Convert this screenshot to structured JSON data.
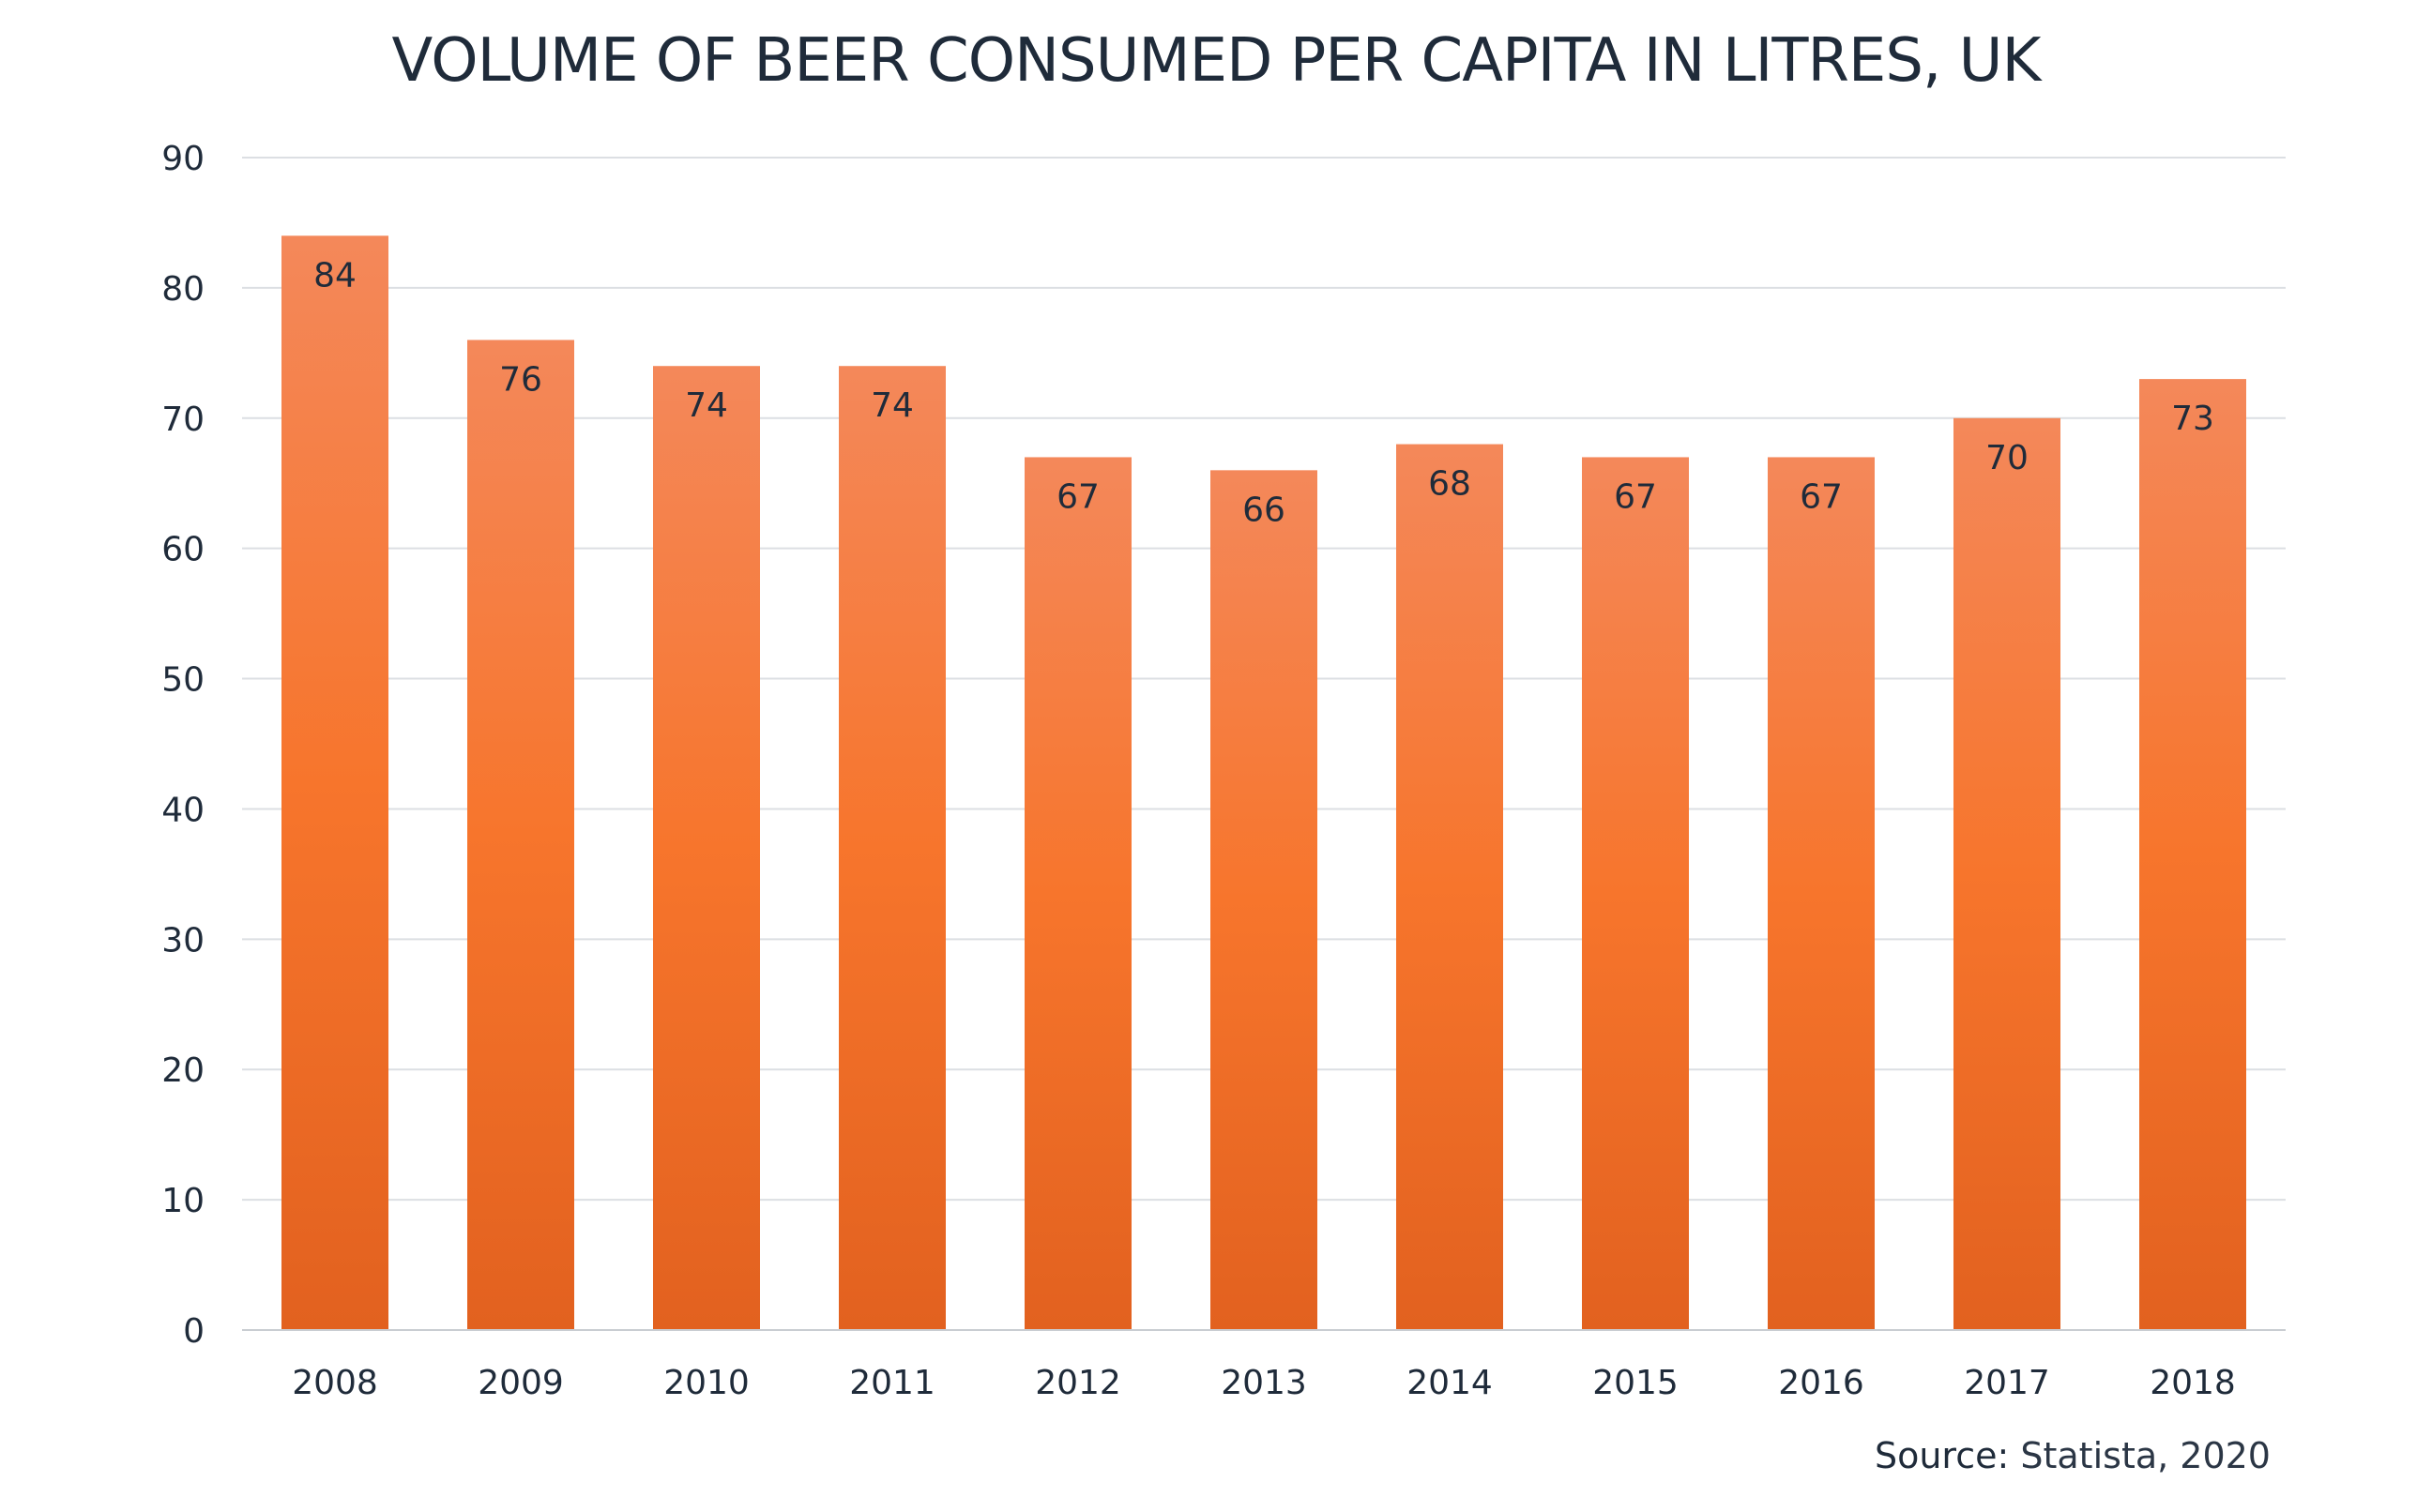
{
  "chart_data": {
    "type": "bar",
    "title": "VOLUME OF BEER CONSUMED PER CAPITA IN LITRES, UK",
    "categories": [
      "2008",
      "2009",
      "2010",
      "2011",
      "2012",
      "2013",
      "2014",
      "2015",
      "2016",
      "2017",
      "2018"
    ],
    "values": [
      84,
      76,
      74,
      74,
      67,
      66,
      68,
      67,
      67,
      70,
      73
    ],
    "data_labels": [
      "84",
      "76",
      "74",
      "74",
      "67",
      "66",
      "68",
      "67",
      "67",
      "70",
      "73"
    ],
    "xlabel": "",
    "ylabel": "",
    "ylim": [
      0,
      90
    ],
    "yticks": [
      0,
      10,
      20,
      30,
      40,
      50,
      60,
      70,
      80,
      90
    ],
    "ytick_labels": [
      "0",
      "10",
      "20",
      "30",
      "40",
      "50",
      "60",
      "70",
      "80",
      "90"
    ],
    "grid": true,
    "legend": "none",
    "colors": {
      "bar_top": "#f4885a",
      "bar_mid": "#f7752c",
      "bar_bottom": "#e2611f",
      "grid": "#dcdfe3",
      "text": "#1f2b3a"
    }
  },
  "source": {
    "label": "Source:",
    "value": " Statista, 2020"
  }
}
